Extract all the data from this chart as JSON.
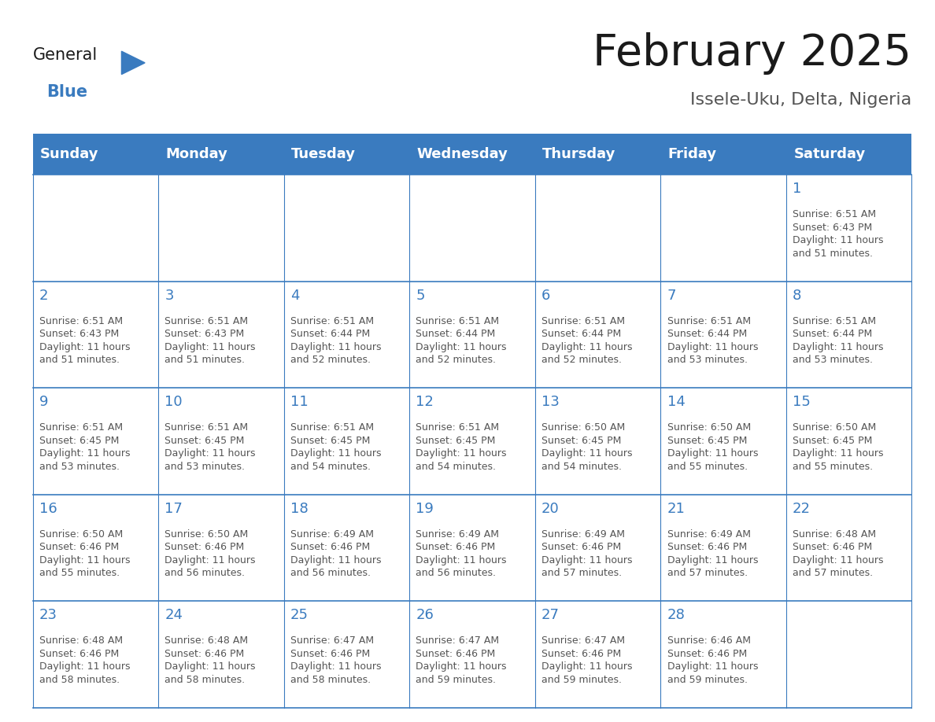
{
  "title": "February 2025",
  "subtitle": "Issele-Uku, Delta, Nigeria",
  "header_color": "#3a7bbf",
  "header_text_color": "#ffffff",
  "cell_bg_color": "#ffffff",
  "cell_border_color": "#3a7bbf",
  "day_number_color": "#3a7bbf",
  "text_color": "#555555",
  "days_of_week": [
    "Sunday",
    "Monday",
    "Tuesday",
    "Wednesday",
    "Thursday",
    "Friday",
    "Saturday"
  ],
  "calendar_data": [
    [
      "",
      "",
      "",
      "",
      "",
      "",
      "1\nSunrise: 6:51 AM\nSunset: 6:43 PM\nDaylight: 11 hours\nand 51 minutes."
    ],
    [
      "2\nSunrise: 6:51 AM\nSunset: 6:43 PM\nDaylight: 11 hours\nand 51 minutes.",
      "3\nSunrise: 6:51 AM\nSunset: 6:43 PM\nDaylight: 11 hours\nand 51 minutes.",
      "4\nSunrise: 6:51 AM\nSunset: 6:44 PM\nDaylight: 11 hours\nand 52 minutes.",
      "5\nSunrise: 6:51 AM\nSunset: 6:44 PM\nDaylight: 11 hours\nand 52 minutes.",
      "6\nSunrise: 6:51 AM\nSunset: 6:44 PM\nDaylight: 11 hours\nand 52 minutes.",
      "7\nSunrise: 6:51 AM\nSunset: 6:44 PM\nDaylight: 11 hours\nand 53 minutes.",
      "8\nSunrise: 6:51 AM\nSunset: 6:44 PM\nDaylight: 11 hours\nand 53 minutes."
    ],
    [
      "9\nSunrise: 6:51 AM\nSunset: 6:45 PM\nDaylight: 11 hours\nand 53 minutes.",
      "10\nSunrise: 6:51 AM\nSunset: 6:45 PM\nDaylight: 11 hours\nand 53 minutes.",
      "11\nSunrise: 6:51 AM\nSunset: 6:45 PM\nDaylight: 11 hours\nand 54 minutes.",
      "12\nSunrise: 6:51 AM\nSunset: 6:45 PM\nDaylight: 11 hours\nand 54 minutes.",
      "13\nSunrise: 6:50 AM\nSunset: 6:45 PM\nDaylight: 11 hours\nand 54 minutes.",
      "14\nSunrise: 6:50 AM\nSunset: 6:45 PM\nDaylight: 11 hours\nand 55 minutes.",
      "15\nSunrise: 6:50 AM\nSunset: 6:45 PM\nDaylight: 11 hours\nand 55 minutes."
    ],
    [
      "16\nSunrise: 6:50 AM\nSunset: 6:46 PM\nDaylight: 11 hours\nand 55 minutes.",
      "17\nSunrise: 6:50 AM\nSunset: 6:46 PM\nDaylight: 11 hours\nand 56 minutes.",
      "18\nSunrise: 6:49 AM\nSunset: 6:46 PM\nDaylight: 11 hours\nand 56 minutes.",
      "19\nSunrise: 6:49 AM\nSunset: 6:46 PM\nDaylight: 11 hours\nand 56 minutes.",
      "20\nSunrise: 6:49 AM\nSunset: 6:46 PM\nDaylight: 11 hours\nand 57 minutes.",
      "21\nSunrise: 6:49 AM\nSunset: 6:46 PM\nDaylight: 11 hours\nand 57 minutes.",
      "22\nSunrise: 6:48 AM\nSunset: 6:46 PM\nDaylight: 11 hours\nand 57 minutes."
    ],
    [
      "23\nSunrise: 6:48 AM\nSunset: 6:46 PM\nDaylight: 11 hours\nand 58 minutes.",
      "24\nSunrise: 6:48 AM\nSunset: 6:46 PM\nDaylight: 11 hours\nand 58 minutes.",
      "25\nSunrise: 6:47 AM\nSunset: 6:46 PM\nDaylight: 11 hours\nand 58 minutes.",
      "26\nSunrise: 6:47 AM\nSunset: 6:46 PM\nDaylight: 11 hours\nand 59 minutes.",
      "27\nSunrise: 6:47 AM\nSunset: 6:46 PM\nDaylight: 11 hours\nand 59 minutes.",
      "28\nSunrise: 6:46 AM\nSunset: 6:46 PM\nDaylight: 11 hours\nand 59 minutes.",
      ""
    ]
  ],
  "title_fontsize": 40,
  "subtitle_fontsize": 16,
  "header_fontsize": 13,
  "day_num_fontsize": 13,
  "cell_text_fontsize": 9,
  "logo_general_color": "#1a1a1a",
  "logo_blue_color": "#3a7bbf",
  "logo_triangle_color": "#3a7bbf"
}
